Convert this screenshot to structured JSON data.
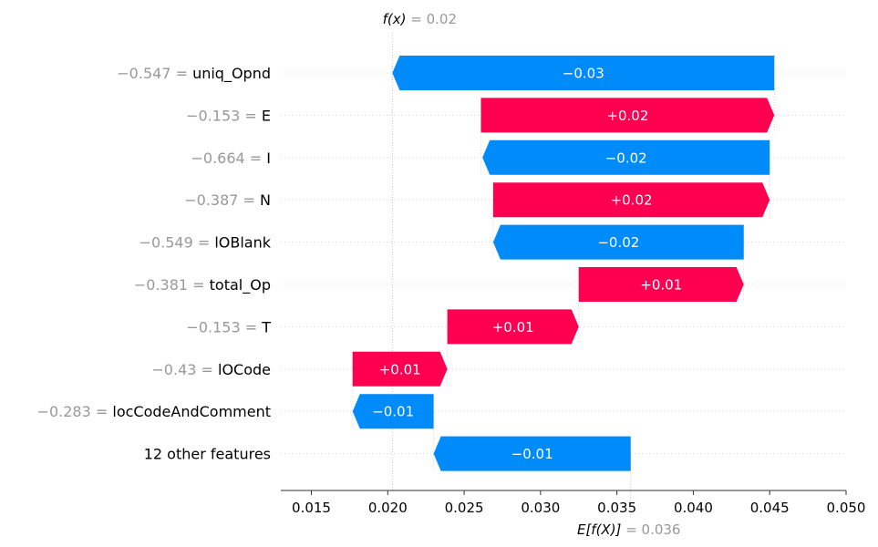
{
  "chart_data": {
    "type": "waterfall",
    "fx_label": "f(x)",
    "fx_value": "= 0.02",
    "ex_label": "E[f(X)]",
    "ex_value": "= 0.036",
    "base_value": 0.0359,
    "final_value": 0.0203,
    "xlim": [
      0.013,
      0.05
    ],
    "xticks": [
      0.015,
      0.02,
      0.025,
      0.03,
      0.035,
      0.04,
      0.045,
      0.05
    ],
    "xtick_labels": [
      "0.015",
      "0.020",
      "0.025",
      "0.030",
      "0.035",
      "0.040",
      "0.045",
      "0.050"
    ],
    "colors": {
      "positive": "#ff0051",
      "negative": "#008bfb"
    },
    "features": [
      {
        "value_label": "−0.547 =",
        "feature": "uniq_Opnd",
        "start": 0.0453,
        "end": 0.0203,
        "text": "−0.03"
      },
      {
        "value_label": "−0.153 =",
        "feature": "E",
        "start": 0.0261,
        "end": 0.0453,
        "text": "+0.02"
      },
      {
        "value_label": "−0.664 =",
        "feature": "I",
        "start": 0.045,
        "end": 0.0262,
        "text": "−0.02"
      },
      {
        "value_label": "−0.387 =",
        "feature": "N",
        "start": 0.0269,
        "end": 0.045,
        "text": "+0.02"
      },
      {
        "value_label": "−0.549 =",
        "feature": "lOBlank",
        "start": 0.0433,
        "end": 0.0269,
        "text": "−0.02"
      },
      {
        "value_label": "−0.381 =",
        "feature": "total_Op",
        "start": 0.0325,
        "end": 0.0433,
        "text": "+0.01"
      },
      {
        "value_label": "−0.153 =",
        "feature": "T",
        "start": 0.0239,
        "end": 0.0325,
        "text": "+0.01"
      },
      {
        "value_label": "−0.43 =",
        "feature": "lOCode",
        "start": 0.0177,
        "end": 0.0239,
        "text": "+0.01"
      },
      {
        "value_label": "−0.283 =",
        "feature": "locCodeAndComment",
        "start": 0.023,
        "end": 0.0177,
        "text": "−0.01"
      },
      {
        "value_label": "",
        "feature": "12 other features",
        "start": 0.0359,
        "end": 0.023,
        "text": "−0.01"
      }
    ]
  }
}
